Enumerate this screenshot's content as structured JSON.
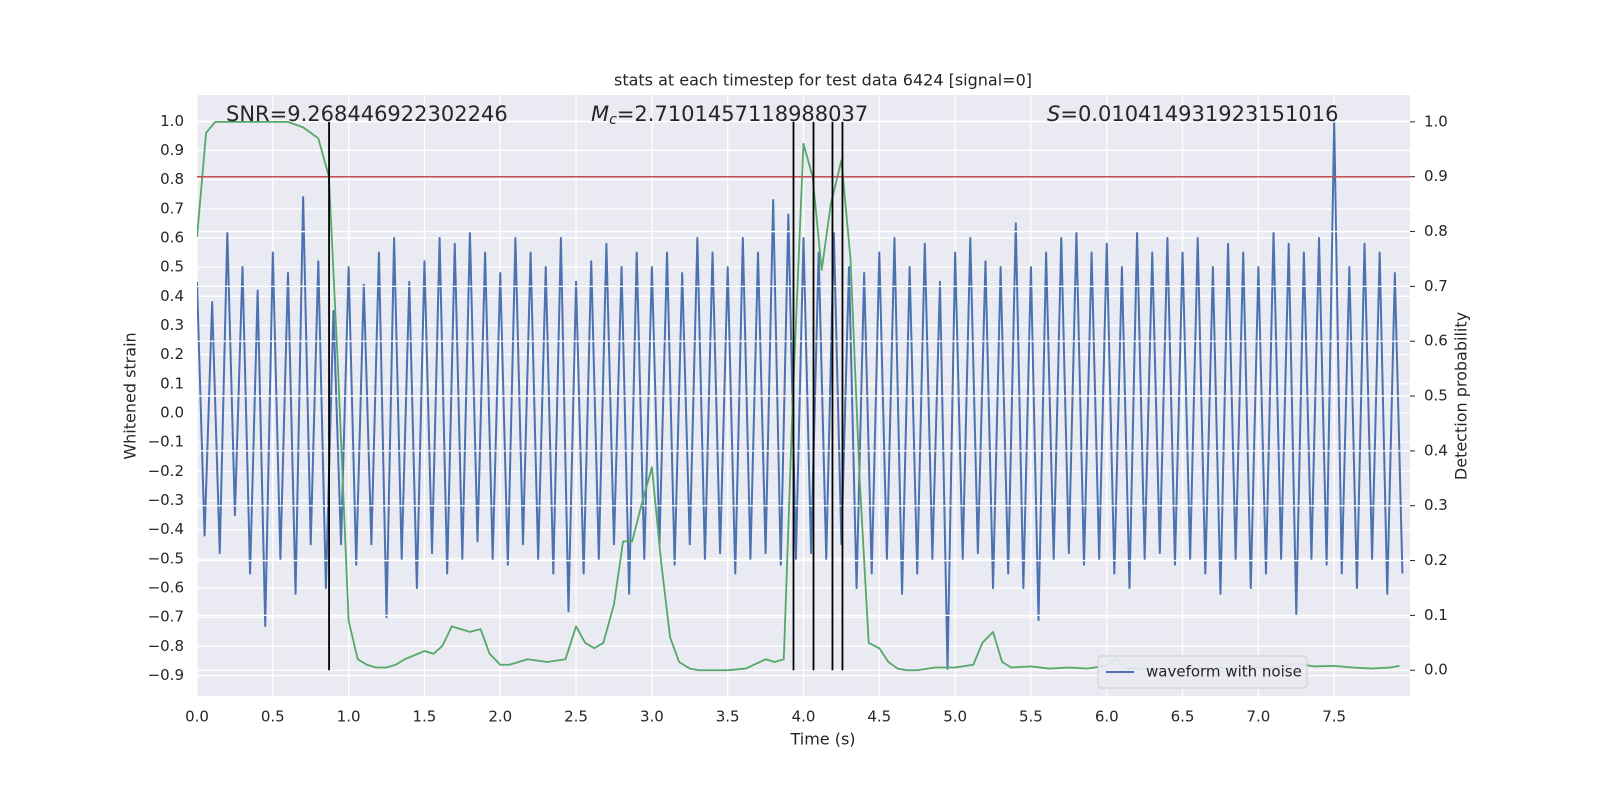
{
  "chart_data": {
    "type": "line",
    "title": "stats at each timestep for test data 6424 [signal=0]",
    "xlabel": "Time (s)",
    "ylabel": "Whitened strain",
    "y2label": "Detection probability",
    "annotations": {
      "snr": "SNR=9.268446922302246",
      "mc_symbol": "M",
      "mc_sub": "c",
      "mc_value": "=2.7101457118988037",
      "s_symbol": "S",
      "s_value": "=0.010414931923151016"
    },
    "xlim": [
      0,
      8.0
    ],
    "ylim": [
      -0.97,
      1.09
    ],
    "y2lim": [
      -0.047,
      1.049
    ],
    "xticks": [
      {
        "value": 0,
        "label": "0.0"
      },
      0.5,
      {
        "value": 1,
        "label": "1.0"
      },
      1.5,
      {
        "value": 2,
        "label": "2.0"
      },
      2.5,
      {
        "value": 3,
        "label": "3.0"
      },
      3.5,
      {
        "value": 4,
        "label": "4.0"
      },
      4.5,
      {
        "value": 5,
        "label": "5.0"
      },
      5.5,
      {
        "value": 6,
        "label": "6.0"
      },
      6.5,
      {
        "value": 7,
        "label": "7.0"
      },
      7.5
    ],
    "yticks": [
      {
        "value": -0.9,
        "label": "−0.9"
      },
      {
        "value": -0.8,
        "label": "−0.8"
      },
      {
        "value": -0.7,
        "label": "−0.7"
      },
      {
        "value": -0.6,
        "label": "−0.6"
      },
      {
        "value": -0.5,
        "label": "−0.5"
      },
      {
        "value": -0.4,
        "label": "−0.4"
      },
      {
        "value": -0.3,
        "label": "−0.3"
      },
      {
        "value": -0.2,
        "label": "−0.2"
      },
      {
        "value": -0.1,
        "label": "−0.1"
      },
      {
        "value": 0,
        "label": "0.0"
      },
      0.1,
      0.2,
      0.3,
      0.4,
      0.5,
      0.6,
      0.7,
      0.8,
      0.9,
      {
        "value": 1,
        "label": "1.0"
      }
    ],
    "y2ticks": [
      {
        "value": 0,
        "label": "0.0"
      },
      0.1,
      0.2,
      0.3,
      0.4,
      0.5,
      0.6,
      0.7,
      0.8,
      0.9,
      {
        "value": 1,
        "label": "1.0"
      }
    ],
    "grid": true,
    "legend": "lower right",
    "series": [
      {
        "name": "waveform with noise",
        "color": "#4c72b0",
        "x": [
          0,
          0.05,
          0.1,
          0.15,
          0.2,
          0.25,
          0.3,
          0.35,
          0.4,
          0.45,
          0.5,
          0.55,
          0.6,
          0.65,
          0.7,
          0.75,
          0.8,
          0.85,
          0.9,
          0.95,
          1,
          1.05,
          1.1,
          1.15,
          1.2,
          1.25,
          1.3,
          1.35,
          1.4,
          1.45,
          1.5,
          1.55,
          1.6,
          1.65,
          1.7,
          1.75,
          1.8,
          1.85,
          1.9,
          1.95,
          2,
          2.05,
          2.1,
          2.15,
          2.2,
          2.25,
          2.3,
          2.35,
          2.4,
          2.45,
          2.5,
          2.55,
          2.6,
          2.65,
          2.7,
          2.75,
          2.8,
          2.85,
          2.9,
          2.95,
          3,
          3.05,
          3.1,
          3.15,
          3.2,
          3.25,
          3.3,
          3.35,
          3.4,
          3.45,
          3.5,
          3.55,
          3.6,
          3.65,
          3.7,
          3.75,
          3.8,
          3.85,
          3.9,
          3.95,
          4,
          4.05,
          4.1,
          4.15,
          4.2,
          4.25,
          4.3,
          4.35,
          4.4,
          4.45,
          4.5,
          4.55,
          4.6,
          4.65,
          4.7,
          4.75,
          4.8,
          4.85,
          4.9,
          4.95,
          5,
          5.05,
          5.1,
          5.15,
          5.2,
          5.25,
          5.3,
          5.35,
          5.4,
          5.45,
          5.5,
          5.55,
          5.6,
          5.65,
          5.7,
          5.75,
          5.8,
          5.85,
          5.9,
          5.95,
          6,
          6.05,
          6.1,
          6.15,
          6.2,
          6.25,
          6.3,
          6.35,
          6.4,
          6.45,
          6.5,
          6.55,
          6.6,
          6.65,
          6.7,
          6.75,
          6.8,
          6.85,
          6.9,
          6.95,
          7,
          7.05,
          7.1,
          7.15,
          7.2,
          7.25,
          7.3,
          7.35,
          7.4,
          7.45,
          7.5,
          7.55,
          7.6,
          7.65,
          7.7,
          7.75,
          7.8,
          7.85,
          7.9,
          7.95
        ],
        "values": [
          0.45,
          -0.42,
          0.38,
          -0.48,
          0.62,
          -0.35,
          0.5,
          -0.55,
          0.42,
          -0.73,
          0.55,
          -0.5,
          0.48,
          -0.62,
          0.74,
          -0.45,
          0.52,
          -0.6,
          0.35,
          -0.45,
          0.5,
          -0.52,
          0.44,
          -0.45,
          0.55,
          -0.7,
          0.6,
          -0.5,
          0.45,
          -0.6,
          0.52,
          -0.48,
          0.6,
          -0.55,
          0.58,
          -0.5,
          0.62,
          -0.44,
          0.55,
          -0.5,
          0.48,
          -0.52,
          0.6,
          -0.45,
          0.55,
          -0.5,
          0.5,
          -0.55,
          0.6,
          -0.68,
          0.45,
          -0.55,
          0.52,
          -0.5,
          0.58,
          -0.45,
          0.5,
          -0.62,
          0.55,
          -0.5,
          0.5,
          -0.45,
          0.55,
          -0.52,
          0.48,
          -0.45,
          0.6,
          -0.5,
          0.55,
          -0.48,
          0.5,
          -0.55,
          0.6,
          -0.5,
          0.55,
          -0.48,
          0.73,
          -0.52,
          0.68,
          -0.5,
          0.6,
          -0.48,
          0.55,
          -0.5,
          0.62,
          -0.45,
          0.5,
          -0.6,
          0.48,
          -0.55,
          0.55,
          -0.5,
          0.6,
          -0.62,
          0.5,
          -0.55,
          0.58,
          -0.5,
          0.45,
          -0.88,
          0.55,
          -0.5,
          0.6,
          -0.48,
          0.52,
          -0.6,
          0.5,
          -0.55,
          0.65,
          -0.6,
          0.5,
          -0.71,
          0.55,
          -0.5,
          0.6,
          -0.48,
          0.62,
          -0.52,
          0.55,
          -0.5,
          0.58,
          -0.55,
          0.5,
          -0.6,
          0.62,
          -0.5,
          0.55,
          -0.48,
          0.6,
          -0.52,
          0.55,
          -0.5,
          0.6,
          -0.55,
          0.5,
          -0.62,
          0.58,
          -0.5,
          0.55,
          -0.6,
          0.5,
          -0.55,
          0.62,
          -0.5,
          0.58,
          -0.69,
          0.55,
          -0.5,
          0.6,
          -0.52,
          1.0,
          -0.55,
          0.5,
          -0.6,
          0.58,
          -0.5,
          0.55,
          -0.62,
          0.48,
          -0.55
        ]
      },
      {
        "color": "#55a868",
        "axis": "y2",
        "x": [
          0,
          0.06,
          0.12,
          0.2,
          0.3,
          0.4,
          0.5,
          0.6,
          0.7,
          0.8,
          0.87,
          0.93,
          1.0,
          1.06,
          1.12,
          1.18,
          1.25,
          1.31,
          1.37,
          1.5,
          1.56,
          1.62,
          1.68,
          1.8,
          1.87,
          1.93,
          2.0,
          2.06,
          2.18,
          2.31,
          2.43,
          2.5,
          2.56,
          2.62,
          2.68,
          2.75,
          2.81,
          2.87,
          2.93,
          3.0,
          3.06,
          3.12,
          3.18,
          3.25,
          3.31,
          3.5,
          3.62,
          3.75,
          3.81,
          3.87,
          3.93,
          4.0,
          4.06,
          4.12,
          4.18,
          4.25,
          4.31,
          4.37,
          4.43,
          4.5,
          4.56,
          4.62,
          4.68,
          4.75,
          4.87,
          5.0,
          5.12,
          5.18,
          5.25,
          5.31,
          5.37,
          5.5,
          5.62,
          5.75,
          5.87,
          5.99,
          6.06,
          6.12,
          6.25,
          6.5,
          6.75,
          6.87,
          6.93,
          7.06,
          7.25,
          7.37,
          7.5,
          7.62,
          7.75,
          7.87,
          7.93
        ],
        "values": [
          0.79,
          0.98,
          1.0,
          1.0,
          1.0,
          1.0,
          1.0,
          1.0,
          0.99,
          0.97,
          0.9,
          0.55,
          0.09,
          0.02,
          0.01,
          0.005,
          0.005,
          0.01,
          0.02,
          0.035,
          0.03,
          0.045,
          0.08,
          0.07,
          0.075,
          0.03,
          0.01,
          0.01,
          0.02,
          0.015,
          0.02,
          0.08,
          0.05,
          0.04,
          0.05,
          0.12,
          0.235,
          0.235,
          0.3,
          0.37,
          0.2,
          0.06,
          0.015,
          0.003,
          0.0,
          0.0,
          0.003,
          0.02,
          0.015,
          0.02,
          0.5,
          0.96,
          0.9,
          0.73,
          0.85,
          0.93,
          0.75,
          0.35,
          0.05,
          0.04,
          0.015,
          0.003,
          0.0,
          0.0,
          0.005,
          0.005,
          0.01,
          0.05,
          0.07,
          0.015,
          0.005,
          0.007,
          0.003,
          0.005,
          0.003,
          0.008,
          0.02,
          0.005,
          0.002,
          0.003,
          0.005,
          0.003,
          0.007,
          0.003,
          0.012,
          0.007,
          0.008,
          0.005,
          0.003,
          0.005,
          0.008
        ]
      }
    ],
    "threshold": {
      "y": 0.9,
      "axis": "y2",
      "color": "#c44e52"
    },
    "vlines": {
      "x": [
        0.871,
        3.934,
        4.066,
        4.191,
        4.257
      ],
      "ymin": 0,
      "ymax": 1,
      "axis": "y2",
      "color": "#000000"
    }
  }
}
